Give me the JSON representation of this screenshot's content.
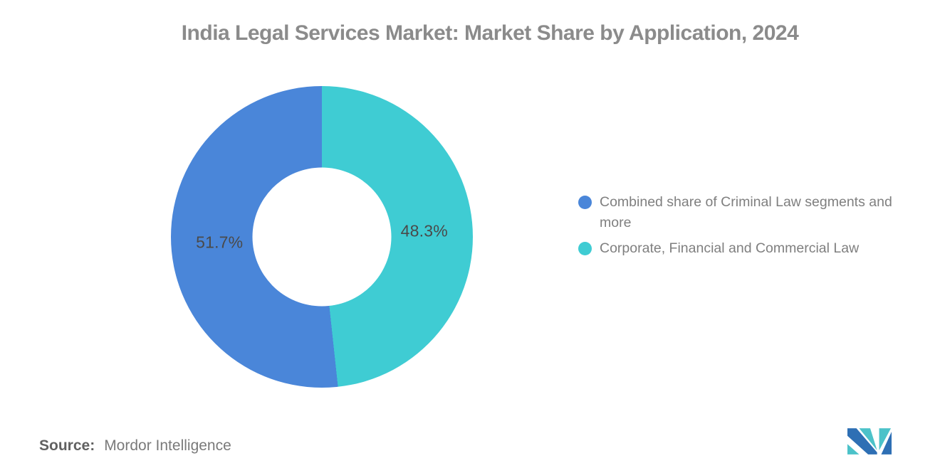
{
  "title": "India Legal Services Market: Market Share by Application, 2024",
  "chart_data": {
    "type": "pie",
    "subtype": "donut",
    "title": "India Legal Services Market: Market Share by Application, 2024",
    "series": [
      {
        "name": "Combined share of Criminal Law segments and more",
        "value": 51.7,
        "label": "51.7%",
        "color": "#4a86d9"
      },
      {
        "name": "Corporate, Financial and Commercial Law",
        "value": 48.3,
        "label": "48.3%",
        "color": "#3fccd3"
      }
    ],
    "start_angle_deg": 0,
    "direction": "clockwise",
    "first_slice_clockwise_from_top": "Corporate, Financial and Commercial Law",
    "inner_radius_ratio": 0.46,
    "legend_position": "right",
    "data_labels": "percent-inside-slices"
  },
  "source": {
    "label": "Source:",
    "value": "Mordor Intelligence"
  },
  "logo": {
    "name": "mordor-intelligence-logo",
    "colors": {
      "blue": "#2e6fb4",
      "teal": "#4cc2c9"
    }
  }
}
